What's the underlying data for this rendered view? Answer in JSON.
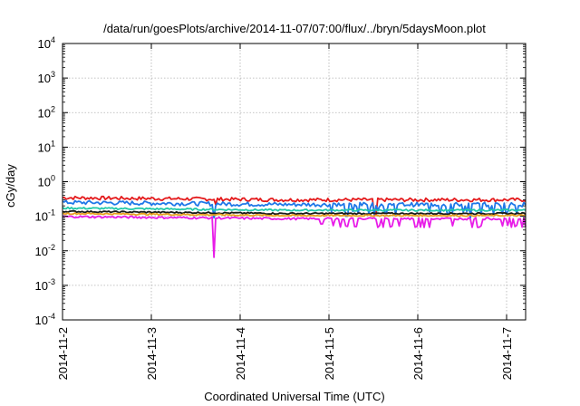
{
  "chart_data": {
    "type": "line",
    "title": "/data/run/goesPlots/archive/2014-11-07/07:00/flux/../bryn/5daysMoon.plot",
    "xlabel": "Coordinated Universal Time (UTC)",
    "ylabel": "cGy/day",
    "yscale": "log",
    "ylim": [
      0.0001,
      10000
    ],
    "xlim": [
      "2014-11-02",
      "2014-11-07 07:00"
    ],
    "x_ticks": [
      "2014-11-2",
      "2014-11-3",
      "2014-11-4",
      "2014-11-5",
      "2014-11-6",
      "2014-11-7"
    ],
    "y_ticks": [
      {
        "base": "10",
        "exp": "4"
      },
      {
        "base": "10",
        "exp": "3"
      },
      {
        "base": "10",
        "exp": "2"
      },
      {
        "base": "10",
        "exp": "1"
      },
      {
        "base": "10",
        "exp": "0"
      },
      {
        "base": "10",
        "exp": "-1"
      },
      {
        "base": "10",
        "exp": "-2"
      },
      {
        "base": "10",
        "exp": "-3"
      },
      {
        "base": "10",
        "exp": "-4"
      }
    ],
    "grid": true,
    "series": [
      {
        "color": "#e41a1c",
        "baseline": 0.3,
        "variability": 0.12,
        "dips": [
          {
            "x": 3.52,
            "value": 0.11
          },
          {
            "x": 1.72,
            "value": 0.22
          }
        ]
      },
      {
        "color": "#1f78e8",
        "baseline": 0.22,
        "variability": 0.14,
        "dips": [
          {
            "x": 1.7,
            "value": 0.09
          },
          {
            "x": 3.2,
            "value": 0.1
          },
          {
            "x": 4.6,
            "value": 0.09
          }
        ]
      },
      {
        "color": "#20c8a8",
        "baseline": 0.15,
        "variability": 0.06,
        "dips": []
      },
      {
        "color": "#1a1a1a",
        "baseline": 0.12,
        "variability": 0.05,
        "dips": []
      },
      {
        "color": "#e8a020",
        "baseline": 0.105,
        "variability": 0.05,
        "dips": []
      },
      {
        "color": "#e81ce8",
        "baseline": 0.085,
        "variability": 0.07,
        "dips": [
          {
            "x": 1.7,
            "value": 0.0065
          },
          {
            "x": 2.92,
            "value": 0.06
          },
          {
            "x": 3.3,
            "value": 0.05
          }
        ]
      }
    ]
  }
}
